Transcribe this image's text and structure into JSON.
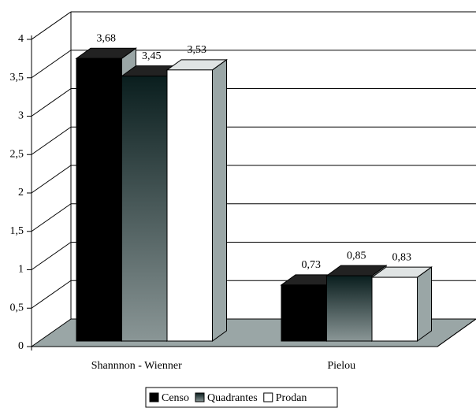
{
  "chart_data": {
    "type": "bar3d",
    "categories": [
      "Shannnon - Wienner",
      "Pielou"
    ],
    "series": [
      {
        "name": "Censo",
        "color": "#000000",
        "values": [
          3.68,
          0.73
        ],
        "value_labels": [
          "3,68",
          "0,73"
        ]
      },
      {
        "name": "Quadrantes",
        "color": "#8a9696",
        "values": [
          3.45,
          0.85
        ],
        "value_labels": [
          "3,45",
          "0,85"
        ]
      },
      {
        "name": "Prodan",
        "color": "#ffffff",
        "values": [
          3.53,
          0.83
        ],
        "value_labels": [
          "3,53",
          "0,83"
        ]
      }
    ],
    "ylim": [
      0,
      4
    ],
    "yticks": [
      0,
      {
        "value": 0.5,
        "label": "0,5"
      },
      1,
      {
        "value": 1.5,
        "label": "1,5"
      },
      2,
      {
        "value": 2.5,
        "label": "2,5"
      },
      3,
      {
        "value": 3.5,
        "label": "3,5"
      },
      4
    ],
    "grid": true,
    "legend": "bottom"
  }
}
